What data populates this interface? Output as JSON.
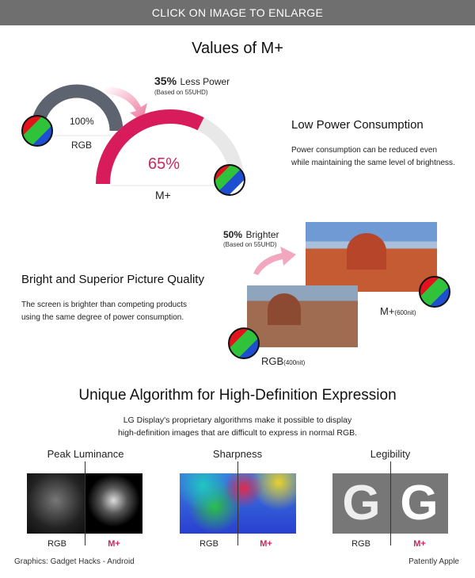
{
  "banner": "CLICK ON IMAGE TO ENLARGE",
  "title": "Values of M+",
  "power": {
    "headline_pct": "35%",
    "headline_text": "Less Power",
    "note": "(Based on 55UHD)",
    "rgb_value": "100%",
    "rgb_label": "RGB",
    "mplus_value": "65%",
    "mplus_label": "M+",
    "mplus_fill_fraction": 0.65,
    "heading": "Low Power Consumption",
    "body": [
      "Power consumption can be reduced even",
      "while maintaining the same level of brightness."
    ]
  },
  "brightness": {
    "headline_pct": "50%",
    "headline_text": "Brighter",
    "note": "(Based on 55UHD)",
    "heading": "Bright and Superior Picture Quality",
    "body": [
      "The screen is brighter than competing products",
      "using the same degree of power consumption."
    ],
    "mplus_label": "M+",
    "mplus_unit": "(600nit)",
    "rgb_label": "RGB",
    "rgb_unit": "(400nit)"
  },
  "algorithm": {
    "title": "Unique Algorithm for High-Definition Expression",
    "body": [
      "LG Display's proprietary algorithms make it possible to display",
      "high-definition images that are difficult to express in normal RGB."
    ],
    "columns": [
      {
        "title": "Peak Luminance",
        "left": "RGB",
        "right": "M+"
      },
      {
        "title": "Sharpness",
        "left": "RGB",
        "right": "M+"
      },
      {
        "title": "Legibility",
        "left": "RGB",
        "right": "M+",
        "glyph": "G"
      }
    ]
  },
  "footer": {
    "left": "Graphics: Gadget Hacks - Android",
    "right": "Patently Apple"
  },
  "colors": {
    "accent": "#d81b5a",
    "gray_arc": "#5d6470",
    "banner": "#6f6f6f"
  }
}
